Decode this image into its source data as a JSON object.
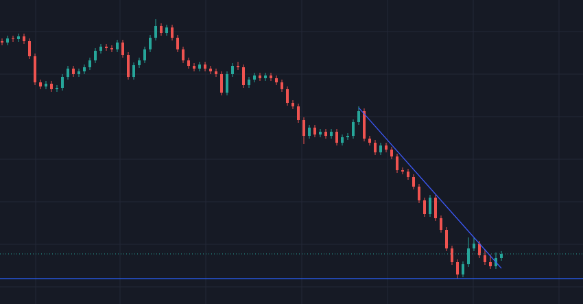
{
  "chart_data": {
    "type": "candlestick",
    "open": [
      383,
      381,
      387,
      386,
      390,
      383,
      361,
      323,
      317,
      321,
      313,
      315,
      331,
      343,
      335,
      339,
      345,
      355,
      369,
      375,
      373,
      371,
      381,
      363,
      331,
      348,
      355,
      371,
      388,
      405,
      395,
      403,
      388,
      371,
      355,
      347,
      343,
      349,
      343,
      339,
      335,
      308,
      335,
      347,
      345,
      319,
      327,
      333,
      329,
      333,
      329,
      323,
      313,
      293,
      288,
      268,
      245,
      257,
      247,
      251,
      245,
      251,
      235,
      243,
      245,
      265,
      281,
      241,
      235,
      221,
      231,
      225,
      215,
      195,
      193,
      185,
      171,
      151,
      131,
      155,
      125,
      108,
      81,
      61,
      43,
      58,
      81,
      88,
      71,
      61,
      55,
      67
    ],
    "high": [
      387,
      391,
      391,
      394,
      394,
      387,
      365,
      327,
      325,
      325,
      319,
      335,
      347,
      347,
      343,
      349,
      359,
      373,
      379,
      379,
      377,
      385,
      385,
      367,
      352,
      359,
      375,
      392,
      415,
      409,
      407,
      407,
      392,
      375,
      359,
      351,
      353,
      353,
      347,
      343,
      339,
      339,
      351,
      353,
      349,
      331,
      337,
      337,
      337,
      337,
      333,
      327,
      317,
      297,
      292,
      272,
      261,
      261,
      255,
      255,
      255,
      255,
      247,
      249,
      269,
      288,
      285,
      245,
      239,
      235,
      235,
      229,
      219,
      199,
      197,
      189,
      175,
      155,
      159,
      159,
      129,
      112,
      85,
      65,
      62,
      97,
      96,
      92,
      80,
      72,
      75,
      77
    ],
    "low": [
      377,
      377,
      382,
      382,
      379,
      357,
      319,
      313,
      313,
      309,
      309,
      311,
      327,
      331,
      331,
      335,
      341,
      351,
      365,
      369,
      367,
      367,
      359,
      327,
      327,
      344,
      351,
      367,
      384,
      391,
      391,
      384,
      367,
      351,
      343,
      339,
      339,
      339,
      335,
      331,
      304,
      304,
      331,
      341,
      315,
      315,
      323,
      325,
      325,
      325,
      319,
      309,
      289,
      284,
      264,
      233,
      241,
      243,
      243,
      241,
      241,
      231,
      231,
      239,
      241,
      261,
      237,
      231,
      217,
      217,
      221,
      211,
      191,
      189,
      181,
      167,
      147,
      127,
      127,
      121,
      104,
      77,
      57,
      37,
      39,
      54,
      77,
      67,
      57,
      51,
      51,
      63
    ],
    "close": [
      381,
      387,
      386,
      390,
      383,
      361,
      323,
      317,
      321,
      313,
      315,
      331,
      343,
      335,
      339,
      345,
      355,
      369,
      375,
      373,
      371,
      381,
      363,
      331,
      348,
      355,
      371,
      388,
      405,
      395,
      403,
      388,
      371,
      355,
      347,
      343,
      349,
      343,
      339,
      335,
      308,
      335,
      347,
      345,
      319,
      327,
      333,
      329,
      333,
      329,
      323,
      313,
      293,
      288,
      268,
      245,
      257,
      247,
      251,
      245,
      251,
      235,
      243,
      245,
      265,
      281,
      241,
      235,
      221,
      231,
      225,
      215,
      195,
      193,
      185,
      171,
      151,
      131,
      155,
      125,
      108,
      81,
      61,
      43,
      58,
      81,
      88,
      71,
      61,
      55,
      67,
      73
    ],
    "ylim": [
      0,
      443
    ],
    "up_color": "#26a69a",
    "down_color": "#ef5350",
    "grid": true,
    "trendline": {
      "from": [
        65,
        286
      ],
      "to": [
        91,
        52
      ],
      "color": "#3d5afe"
    },
    "hline": {
      "value": 37,
      "color": "#2962ff"
    },
    "last_price_line": true
  }
}
